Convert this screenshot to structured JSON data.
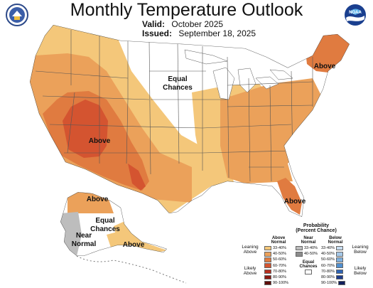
{
  "title": "Monthly Temperature Outlook",
  "valid_label": "Valid:",
  "valid_value": "October 2025",
  "issued_label": "Issued:",
  "issued_value": "September 18, 2025",
  "logos": {
    "left_icon": "doc-seal-icon",
    "right_icon": "noaa-logo-icon",
    "noaa_text": "NOAA"
  },
  "map_labels": {
    "equal_chances_line1": "Equal",
    "equal_chances_line2": "Chances",
    "above_southwest": "Above",
    "above_northeast": "Above",
    "above_florida": "Above",
    "above_alaska_north": "Above",
    "above_alaska_south": "Above",
    "alaska_equal_line1": "Equal",
    "alaska_equal_line2": "Chances",
    "near_normal_line1": "Near",
    "near_normal_line2": "Normal"
  },
  "legend": {
    "title_line1": "Probability",
    "title_line2": "(Percent Chance)",
    "above_header_line1": "Above",
    "above_header_line2": "Normal",
    "near_header_line1": "Near",
    "near_header_line2": "Normal",
    "below_header_line1": "Below",
    "below_header_line2": "Normal",
    "leaning_above_line1": "Leaning",
    "leaning_above_line2": "Above",
    "likely_above_line1": "Likely",
    "likely_above_line2": "Above",
    "leaning_below_line1": "Leaning",
    "leaning_below_line2": "Below",
    "likely_below_line1": "Likely",
    "likely_below_line2": "Below",
    "equal_chances_line1": "Equal",
    "equal_chances_line2": "Chances",
    "above_bins": [
      {
        "label": "33-40%",
        "color": "#f4c77a"
      },
      {
        "label": "40-50%",
        "color": "#eba15a"
      },
      {
        "label": "50-60%",
        "color": "#e07b40"
      },
      {
        "label": "60-70%",
        "color": "#d45430"
      },
      {
        "label": "70-80%",
        "color": "#b83020"
      },
      {
        "label": "80-90%",
        "color": "#8c1a12"
      },
      {
        "label": "90-100%",
        "color": "#5e0e0a"
      }
    ],
    "near_bins": [
      {
        "label": "33-40%",
        "color": "#bdbdbd"
      },
      {
        "label": "40-50%",
        "color": "#8c8c8c"
      }
    ],
    "below_bins": [
      {
        "label": "33-40%",
        "color": "#c7dcef"
      },
      {
        "label": "40-50%",
        "color": "#a5c8e8"
      },
      {
        "label": "50-60%",
        "color": "#7fb0df"
      },
      {
        "label": "60-70%",
        "color": "#4f8fd0"
      },
      {
        "label": "70-80%",
        "color": "#2e64b5"
      },
      {
        "label": "80-90%",
        "color": "#1d3c8c"
      },
      {
        "label": "90-100%",
        "color": "#101f5c"
      }
    ]
  }
}
